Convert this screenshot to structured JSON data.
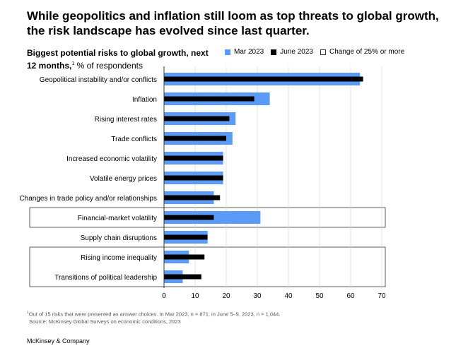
{
  "headline": "While geopolitics and inflation still loom as top threats to global growth, the risk landscape has evolved since last quarter.",
  "chart_title": {
    "bold": "Biggest potential risks to global growth, next 12 months,",
    "sup": "1",
    "rest": " % of respondents"
  },
  "legend": {
    "mar": "Mar 2023",
    "jun": "June 2023",
    "change": "Change of 25% or more"
  },
  "colors": {
    "mar": "#5b9bf7",
    "jun": "#000000",
    "frame": "#333333",
    "grid": "#d9d9d9"
  },
  "chart_data": {
    "type": "bar",
    "orientation": "horizontal",
    "categories": [
      "Geopolitical instability and/or conflicts",
      "Inflation",
      "Rising interest rates",
      "Trade conflicts",
      "Increased economic volatility",
      "Volatile energy prices",
      "Changes in trade policy and/or relationships",
      "Financial-market volatility",
      "Supply chain disruptions",
      "Rising income inequality",
      "Transitions of political leadership"
    ],
    "series": [
      {
        "name": "Mar 2023",
        "values": [
          63,
          34,
          23,
          22,
          19,
          19,
          16,
          31,
          14,
          8,
          6
        ]
      },
      {
        "name": "June 2023",
        "values": [
          64,
          29,
          21,
          20,
          19,
          19,
          18,
          16,
          14,
          13,
          12
        ]
      }
    ],
    "highlighted": [
      "Financial-market volatility",
      "Rising income inequality",
      "Transitions of political leadership"
    ],
    "x_ticks": [
      0,
      10,
      20,
      30,
      40,
      50,
      60,
      70
    ],
    "xlim": [
      0,
      70
    ],
    "xlabel": "",
    "ylabel": ""
  },
  "footnote": {
    "line1_sup": "1",
    "line1": "Out of 15 risks that were presented as answer choices. In Mar 2023, n = 871; in June 5–9, 2023, n = 1,044.",
    "line2": "Source: McKinsey Global Surveys on economic conditions, 2023"
  },
  "brand": "McKinsey & Company"
}
